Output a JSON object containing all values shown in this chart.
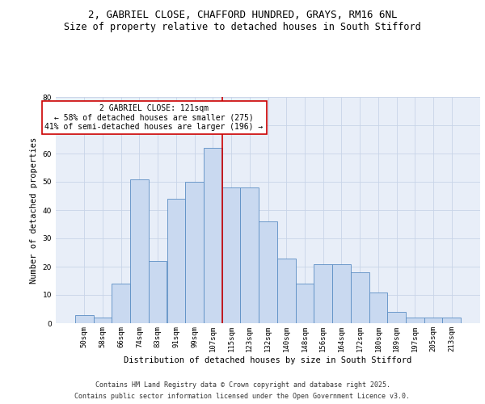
{
  "title_line1": "2, GABRIEL CLOSE, CHAFFORD HUNDRED, GRAYS, RM16 6NL",
  "title_line2": "Size of property relative to detached houses in South Stifford",
  "xlabel": "Distribution of detached houses by size in South Stifford",
  "ylabel": "Number of detached properties",
  "categories": [
    "50sqm",
    "58sqm",
    "66sqm",
    "74sqm",
    "83sqm",
    "91sqm",
    "99sqm",
    "107sqm",
    "115sqm",
    "123sqm",
    "132sqm",
    "140sqm",
    "148sqm",
    "156sqm",
    "164sqm",
    "172sqm",
    "180sqm",
    "189sqm",
    "197sqm",
    "205sqm",
    "213sqm"
  ],
  "bar_heights": [
    3,
    2,
    14,
    51,
    22,
    44,
    50,
    62,
    48,
    48,
    36,
    23,
    14,
    21,
    21,
    18,
    11,
    4,
    2,
    2,
    2
  ],
  "bar_color": "#c9d9f0",
  "bar_edge_color": "#5b8ec4",
  "reference_line_x": 7.5,
  "annotation_text": "2 GABRIEL CLOSE: 121sqm\n← 58% of detached houses are smaller (275)\n41% of semi-detached houses are larger (196) →",
  "annotation_box_color": "#ffffff",
  "annotation_box_edge": "#cc0000",
  "reference_line_color": "#cc0000",
  "ylim": [
    0,
    80
  ],
  "yticks": [
    0,
    10,
    20,
    30,
    40,
    50,
    60,
    70,
    80
  ],
  "grid_color": "#c8d4e8",
  "background_color": "#e8eef8",
  "footer_line1": "Contains HM Land Registry data © Crown copyright and database right 2025.",
  "footer_line2": "Contains public sector information licensed under the Open Government Licence v3.0.",
  "title_fontsize": 9,
  "subtitle_fontsize": 8.5,
  "axis_label_fontsize": 7.5,
  "tick_fontsize": 6.5,
  "annotation_fontsize": 7,
  "footer_fontsize": 6
}
